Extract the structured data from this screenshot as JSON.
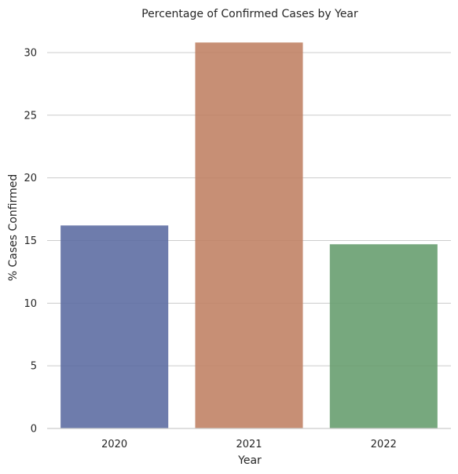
{
  "chart_data": {
    "type": "bar",
    "title": "Percentage of Confirmed Cases by Year",
    "xlabel": "Year",
    "ylabel": "% Cases Confirmed",
    "categories": [
      "2020",
      "2021",
      "2022"
    ],
    "values": [
      16.2,
      30.8,
      14.7
    ],
    "ylim": [
      0,
      32
    ],
    "yticks": [
      0,
      5,
      10,
      15,
      20,
      25,
      30
    ],
    "grid": true,
    "bar_colors": [
      "#5a6aa0",
      "#bf7f62",
      "#649c6c"
    ],
    "bar_opacity": 0.88
  }
}
